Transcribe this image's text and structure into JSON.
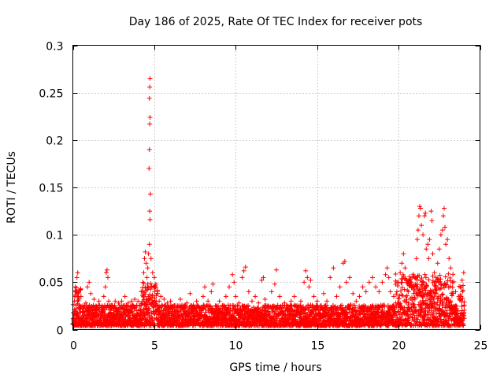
{
  "chart_data": {
    "type": "scatter",
    "title": "Day 186 of 2025, Rate Of TEC Index for receiver pots",
    "xlabel": "GPS time / hours",
    "ylabel": "ROTI / TECUs",
    "xlim": [
      0,
      25
    ],
    "ylim": [
      0,
      0.3
    ],
    "xticks": [
      0,
      5,
      10,
      15,
      20,
      25
    ],
    "xtick_labels": [
      "0",
      "5",
      "10",
      "15",
      "20",
      "25"
    ],
    "yticks": [
      0,
      0.05,
      0.1,
      0.15,
      0.2,
      0.25,
      0.3
    ],
    "ytick_labels": [
      "0",
      "0.05",
      "0.1",
      "0.15",
      "0.2",
      "0.25",
      "0.3"
    ],
    "grid": true,
    "marker": "plus",
    "marker_color": "#ff0000",
    "series": [
      {
        "name": "ROTI",
        "points": [
          [
            0.05,
            0.012
          ],
          [
            0.1,
            0.03
          ],
          [
            0.15,
            0.045
          ],
          [
            0.2,
            0.022
          ],
          [
            0.25,
            0.055
          ],
          [
            0.3,
            0.06
          ],
          [
            0.35,
            0.04
          ],
          [
            0.4,
            0.018
          ],
          [
            0.5,
            0.035
          ],
          [
            0.6,
            0.025
          ],
          [
            0.7,
            0.015
          ],
          [
            0.8,
            0.028
          ],
          [
            0.9,
            0.045
          ],
          [
            1.0,
            0.05
          ],
          [
            1.1,
            0.038
          ],
          [
            1.2,
            0.02
          ],
          [
            1.3,
            0.032
          ],
          [
            1.4,
            0.015
          ],
          [
            1.5,
            0.022
          ],
          [
            1.6,
            0.03
          ],
          [
            1.7,
            0.012
          ],
          [
            1.8,
            0.025
          ],
          [
            1.9,
            0.035
          ],
          [
            2.0,
            0.045
          ],
          [
            2.05,
            0.06
          ],
          [
            2.1,
            0.063
          ],
          [
            2.15,
            0.055
          ],
          [
            2.2,
            0.03
          ],
          [
            2.3,
            0.018
          ],
          [
            2.4,
            0.025
          ],
          [
            2.5,
            0.02
          ],
          [
            2.6,
            0.03
          ],
          [
            2.7,
            0.022
          ],
          [
            2.8,
            0.028
          ],
          [
            2.9,
            0.015
          ],
          [
            3.0,
            0.03
          ],
          [
            3.1,
            0.025
          ],
          [
            3.2,
            0.035
          ],
          [
            3.3,
            0.02
          ],
          [
            3.4,
            0.028
          ],
          [
            3.5,
            0.018
          ],
          [
            3.6,
            0.03
          ],
          [
            3.7,
            0.025
          ],
          [
            3.8,
            0.032
          ],
          [
            3.9,
            0.02
          ],
          [
            4.0,
            0.03
          ],
          [
            4.1,
            0.025
          ],
          [
            4.2,
            0.04
          ],
          [
            4.3,
            0.05
          ],
          [
            4.35,
            0.06
          ],
          [
            4.4,
            0.075
          ],
          [
            4.45,
            0.082
          ],
          [
            4.5,
            0.07
          ],
          [
            4.55,
            0.055
          ],
          [
            4.6,
            0.065
          ],
          [
            4.65,
            0.08
          ],
          [
            4.7,
            0.09
          ],
          [
            4.72,
            0.125
          ],
          [
            4.74,
            0.116
          ],
          [
            4.76,
            0.143
          ],
          [
            4.68,
            0.17
          ],
          [
            4.7,
            0.19
          ],
          [
            4.72,
            0.217
          ],
          [
            4.74,
            0.224
          ],
          [
            4.7,
            0.244
          ],
          [
            4.72,
            0.256
          ],
          [
            4.74,
            0.265
          ],
          [
            4.8,
            0.075
          ],
          [
            4.9,
            0.06
          ],
          [
            5.0,
            0.055
          ],
          [
            5.1,
            0.048
          ],
          [
            5.2,
            0.04
          ],
          [
            5.3,
            0.03
          ],
          [
            5.4,
            0.035
          ],
          [
            5.5,
            0.025
          ],
          [
            5.6,
            0.032
          ],
          [
            5.7,
            0.02
          ],
          [
            5.8,
            0.028
          ],
          [
            5.9,
            0.022
          ],
          [
            6.0,
            0.03
          ],
          [
            6.2,
            0.025
          ],
          [
            6.4,
            0.02
          ],
          [
            6.6,
            0.032
          ],
          [
            6.8,
            0.024
          ],
          [
            7.0,
            0.028
          ],
          [
            7.2,
            0.038
          ],
          [
            7.4,
            0.026
          ],
          [
            7.6,
            0.03
          ],
          [
            7.8,
            0.022
          ],
          [
            8.0,
            0.035
          ],
          [
            8.1,
            0.045
          ],
          [
            8.3,
            0.03
          ],
          [
            8.5,
            0.04
          ],
          [
            8.6,
            0.048
          ],
          [
            8.8,
            0.025
          ],
          [
            9.0,
            0.03
          ],
          [
            9.2,
            0.022
          ],
          [
            9.4,
            0.035
          ],
          [
            9.6,
            0.045
          ],
          [
            9.8,
            0.058
          ],
          [
            9.9,
            0.05
          ],
          [
            10.0,
            0.035
          ],
          [
            10.2,
            0.028
          ],
          [
            10.4,
            0.055
          ],
          [
            10.5,
            0.062
          ],
          [
            10.6,
            0.066
          ],
          [
            10.8,
            0.04
          ],
          [
            11.0,
            0.03
          ],
          [
            11.2,
            0.035
          ],
          [
            11.4,
            0.028
          ],
          [
            11.6,
            0.052
          ],
          [
            11.7,
            0.055
          ],
          [
            11.8,
            0.032
          ],
          [
            12.0,
            0.025
          ],
          [
            12.2,
            0.04
          ],
          [
            12.4,
            0.048
          ],
          [
            12.5,
            0.063
          ],
          [
            12.7,
            0.035
          ],
          [
            13.0,
            0.028
          ],
          [
            13.2,
            0.022
          ],
          [
            13.4,
            0.03
          ],
          [
            13.6,
            0.035
          ],
          [
            13.8,
            0.025
          ],
          [
            14.0,
            0.03
          ],
          [
            14.2,
            0.05
          ],
          [
            14.3,
            0.062
          ],
          [
            14.4,
            0.055
          ],
          [
            14.5,
            0.045
          ],
          [
            14.6,
            0.052
          ],
          [
            14.8,
            0.035
          ],
          [
            15.0,
            0.03
          ],
          [
            15.2,
            0.025
          ],
          [
            15.4,
            0.038
          ],
          [
            15.6,
            0.03
          ],
          [
            15.8,
            0.055
          ],
          [
            16.0,
            0.065
          ],
          [
            16.2,
            0.035
          ],
          [
            16.4,
            0.045
          ],
          [
            16.6,
            0.07
          ],
          [
            16.7,
            0.072
          ],
          [
            16.8,
            0.05
          ],
          [
            17.0,
            0.055
          ],
          [
            17.2,
            0.038
          ],
          [
            17.4,
            0.03
          ],
          [
            17.6,
            0.035
          ],
          [
            17.8,
            0.045
          ],
          [
            18.0,
            0.04
          ],
          [
            18.2,
            0.05
          ],
          [
            18.4,
            0.055
          ],
          [
            18.6,
            0.045
          ],
          [
            18.8,
            0.04
          ],
          [
            19.0,
            0.05
          ],
          [
            19.2,
            0.058
          ],
          [
            19.3,
            0.065
          ],
          [
            19.4,
            0.055
          ],
          [
            19.5,
            0.04
          ],
          [
            19.7,
            0.035
          ],
          [
            19.9,
            0.04
          ],
          [
            20.0,
            0.05
          ],
          [
            20.1,
            0.06
          ],
          [
            20.2,
            0.07
          ],
          [
            20.3,
            0.08
          ],
          [
            20.4,
            0.065
          ],
          [
            20.5,
            0.05
          ],
          [
            20.6,
            0.04
          ],
          [
            20.8,
            0.045
          ],
          [
            21.0,
            0.055
          ],
          [
            21.1,
            0.075
          ],
          [
            21.15,
            0.095
          ],
          [
            21.2,
            0.105
          ],
          [
            21.25,
            0.12
          ],
          [
            21.3,
            0.13
          ],
          [
            21.35,
            0.128
          ],
          [
            21.4,
            0.11
          ],
          [
            21.5,
            0.1
          ],
          [
            21.6,
            0.12
          ],
          [
            21.65,
            0.123
          ],
          [
            21.7,
            0.085
          ],
          [
            21.8,
            0.09
          ],
          [
            21.85,
            0.075
          ],
          [
            21.9,
            0.095
          ],
          [
            22.0,
            0.125
          ],
          [
            22.05,
            0.115
          ],
          [
            22.1,
            0.08
          ],
          [
            22.2,
            0.06
          ],
          [
            22.3,
            0.055
          ],
          [
            22.4,
            0.07
          ],
          [
            22.5,
            0.085
          ],
          [
            22.6,
            0.1
          ],
          [
            22.7,
            0.105
          ],
          [
            22.75,
            0.12
          ],
          [
            22.8,
            0.128
          ],
          [
            22.85,
            0.108
          ],
          [
            22.9,
            0.09
          ],
          [
            23.0,
            0.095
          ],
          [
            23.1,
            0.075
          ],
          [
            23.2,
            0.065
          ],
          [
            23.3,
            0.05
          ],
          [
            23.5,
            0.04
          ],
          [
            23.7,
            0.035
          ],
          [
            23.8,
            0.045
          ],
          [
            23.9,
            0.052
          ],
          [
            24.0,
            0.06
          ]
        ]
      }
    ]
  }
}
